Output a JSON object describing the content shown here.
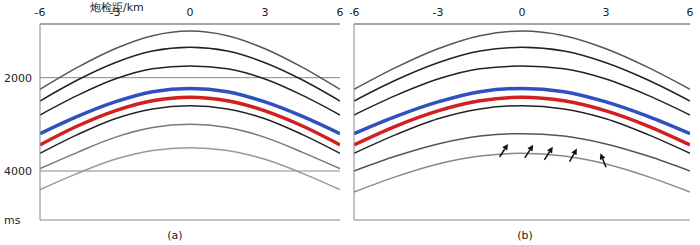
{
  "chart_data": [
    {
      "type": "line",
      "caption": "(a)",
      "x_label": "炮检距/km",
      "y_label": "ms",
      "x": [
        -6,
        -4.5,
        -3,
        -1.5,
        0,
        1.5,
        3,
        4.5,
        6
      ],
      "series": [
        {
          "color": "#555555",
          "values": [
            2250,
            1780,
            1380,
            1100,
            1000,
            1100,
            1380,
            1780,
            2250
          ]
        },
        {
          "color": "#222222",
          "values": [
            2500,
            2050,
            1680,
            1430,
            1350,
            1430,
            1680,
            2050,
            2500
          ]
        },
        {
          "color": "#222222",
          "values": [
            2800,
            2380,
            2030,
            1810,
            1750,
            1810,
            2030,
            2380,
            2800
          ]
        },
        {
          "color": "#3050c0",
          "values": [
            3200,
            2830,
            2520,
            2300,
            2230,
            2300,
            2520,
            2830,
            3200
          ]
        },
        {
          "color": "#d02020",
          "values": [
            3440,
            3036,
            2711,
            2496,
            2420,
            2496,
            2711,
            3036,
            3440
          ]
        },
        {
          "color": "#222222",
          "values": [
            3620,
            3220,
            2880,
            2670,
            2600,
            2670,
            2880,
            3220,
            3620
          ]
        },
        {
          "color": "#777777",
          "values": [
            3950,
            3600,
            3280,
            3070,
            3000,
            3070,
            3280,
            3600,
            3950
          ]
        },
        {
          "color": "#999999",
          "values": [
            4400,
            4050,
            3750,
            3560,
            3500,
            3560,
            3750,
            4050,
            4400
          ]
        }
      ],
      "xlim": [
        -6,
        6
      ],
      "xticks": [
        -6,
        -3,
        0,
        3,
        6
      ],
      "ylim": [
        850,
        5050
      ],
      "yticks": [
        2000,
        4000
      ],
      "grid": true,
      "tick_labels": true
    },
    {
      "type": "line",
      "caption": "(b)",
      "x": [
        -6,
        -4.5,
        -3,
        -1.5,
        0,
        1.5,
        3,
        4.5,
        6
      ],
      "series": [
        {
          "color": "#555555",
          "values": [
            2250,
            1780,
            1380,
            1100,
            1000,
            1100,
            1380,
            1780,
            2250
          ]
        },
        {
          "color": "#222222",
          "values": [
            2500,
            2050,
            1680,
            1430,
            1350,
            1430,
            1680,
            2050,
            2500
          ]
        },
        {
          "color": "#222222",
          "values": [
            2800,
            2380,
            2030,
            1810,
            1750,
            1810,
            2030,
            2380,
            2800
          ]
        },
        {
          "color": "#3050c0",
          "values": [
            3200,
            2830,
            2520,
            2300,
            2230,
            2300,
            2520,
            2830,
            3200
          ]
        },
        {
          "color": "#d02020",
          "values": [
            3440,
            3036,
            2711,
            2496,
            2420,
            2496,
            2711,
            3036,
            3440
          ]
        },
        {
          "color": "#222222",
          "values": [
            3620,
            3220,
            2880,
            2670,
            2600,
            2670,
            2880,
            3220,
            3620
          ]
        },
        {
          "color": "#555555",
          "values": [
            4000,
            3680,
            3420,
            3250,
            3200,
            3250,
            3420,
            3680,
            4000
          ]
        },
        {
          "color": "#888888",
          "values": [
            4450,
            4120,
            3850,
            3680,
            3620,
            3680,
            3850,
            4120,
            4450
          ]
        }
      ],
      "arrows": [
        {
          "from": [
            -0.8,
            3700
          ],
          "to": [
            -0.5,
            3420
          ]
        },
        {
          "from": [
            0.1,
            3720
          ],
          "to": [
            0.4,
            3440
          ]
        },
        {
          "from": [
            0.8,
            3760
          ],
          "to": [
            1.1,
            3480
          ]
        },
        {
          "from": [
            1.7,
            3800
          ],
          "to": [
            1.96,
            3520
          ]
        },
        {
          "from": [
            3.0,
            3920
          ],
          "to": [
            2.8,
            3620
          ]
        }
      ],
      "xlim": [
        -6,
        6
      ],
      "xticks": [
        -6,
        -3,
        0,
        3,
        6
      ],
      "ylim": [
        850,
        5050
      ],
      "yticks": [
        2000,
        4000
      ],
      "grid": true,
      "tick_labels": "x"
    }
  ]
}
